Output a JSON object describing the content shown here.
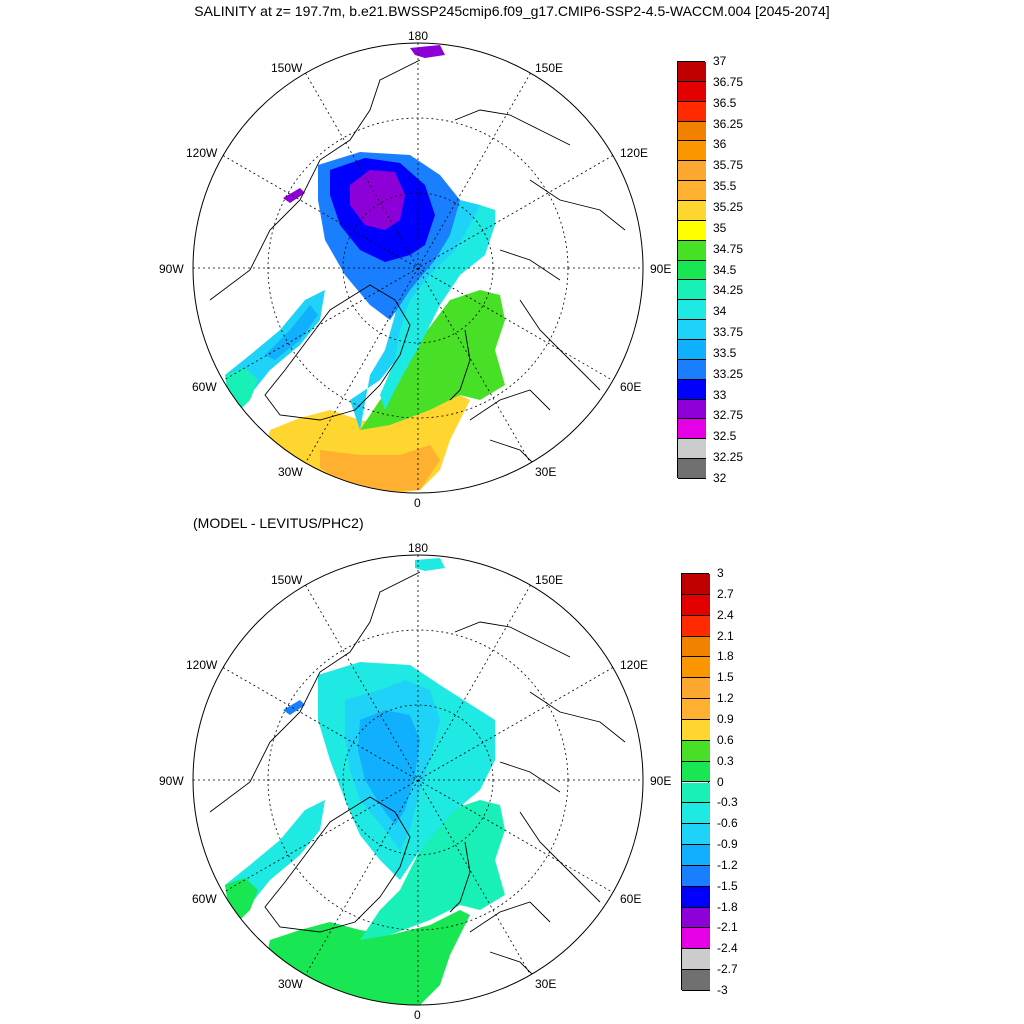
{
  "title": "SALINITY at z= 197.7m, b.e21.BWSSP245cmip6.f09_g17.CMIP6-SSP2-4.5-WACCM.004 [2045-2074]",
  "subtitle": "(MODEL - LEVITUS/PHC2)",
  "maps": [
    {
      "lon_labels": {
        "top": "180",
        "top_left": "150W",
        "top_right": "150E",
        "left_upper": "120W",
        "right_upper": "120E",
        "left": "90W",
        "right": "90E",
        "left_lower": "60W",
        "right_lower": "60E",
        "bottom_left": "30W",
        "bottom_right": "30E",
        "bottom": "0"
      }
    },
    {
      "lon_labels": {
        "top": "180",
        "top_left": "150W",
        "top_right": "150E",
        "left_upper": "120W",
        "right_upper": "120E",
        "left": "90W",
        "right": "90E",
        "left_lower": "60W",
        "right_lower": "60E",
        "bottom_left": "30W",
        "bottom_right": "30E",
        "bottom": "0"
      }
    }
  ],
  "colorbars": [
    {
      "labels": [
        "37",
        "36.75",
        "36.5",
        "36.25",
        "36",
        "35.75",
        "35.5",
        "35.25",
        "35",
        "34.75",
        "34.5",
        "34.25",
        "34",
        "33.75",
        "33.5",
        "33.25",
        "33",
        "32.75",
        "32.5",
        "32.25",
        "32"
      ],
      "colors": [
        "#c00000",
        "#e30000",
        "#ff2a00",
        "#f08200",
        "#fb9600",
        "#fca830",
        "#ffb030",
        "#ffd530",
        "#ffff00",
        "#47e027",
        "#18e652",
        "#19f0b8",
        "#1ee9e3",
        "#1fd2f7",
        "#10b0ff",
        "#1a7fff",
        "#0000ff",
        "#8e00d8",
        "#e600e6",
        "#cccccc",
        "#707070"
      ]
    },
    {
      "labels": [
        "3",
        "2.7",
        "2.4",
        "2.1",
        "1.8",
        "1.5",
        "1.2",
        "0.9",
        "0.6",
        "0.3",
        "0",
        "-0.3",
        "-0.6",
        "-0.9",
        "-1.2",
        "-1.5",
        "-1.8",
        "-2.1",
        "-2.4",
        "-2.7",
        "-3"
      ],
      "colors": [
        "#c00000",
        "#e30000",
        "#ff2a00",
        "#f08200",
        "#fb9600",
        "#fca830",
        "#ffb030",
        "#ffd530",
        "#47e027",
        "#18e652",
        "#19f0b8",
        "#1ee9e3",
        "#1fd2f7",
        "#10b0ff",
        "#1a7fff",
        "#0000ff",
        "#8e00d8",
        "#e600e6",
        "#cccccc",
        "#707070"
      ]
    }
  ]
}
